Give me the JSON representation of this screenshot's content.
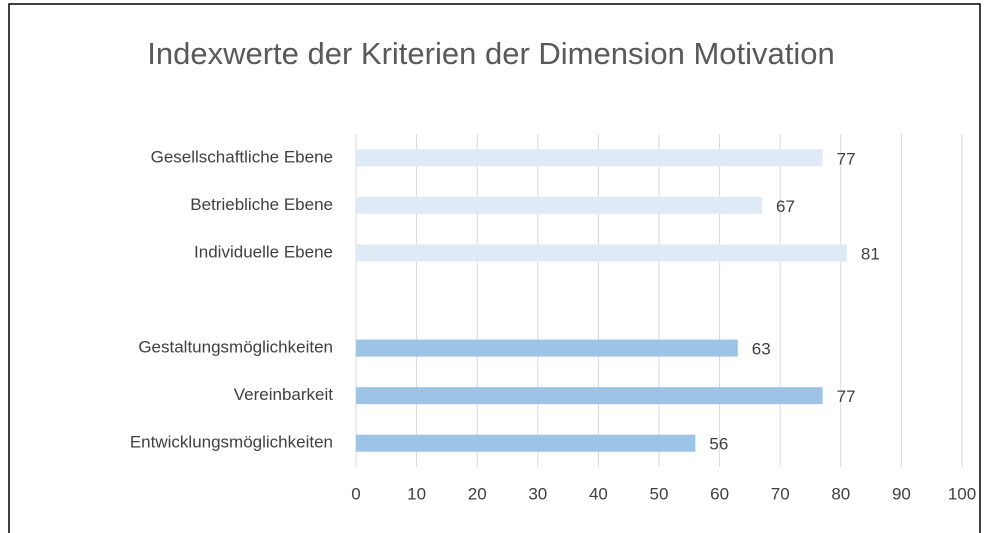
{
  "chart_data": {
    "type": "barh",
    "title": "Indexwerte der Kriterien der Dimension Motivation",
    "categories": [
      "Gesellschaftliche Ebene",
      "Betriebliche Ebene",
      "Individuelle Ebene",
      null,
      "Gestaltungsmöglichkeiten",
      "Vereinbarkeit",
      "Entwicklungsmöglichkeiten"
    ],
    "values": [
      77,
      67,
      81,
      null,
      63,
      77,
      56
    ],
    "colors": [
      "#deebf7",
      "#deebf7",
      "#deebf7",
      null,
      "#9dc3e6",
      "#9dc3e6",
      "#9dc3e6"
    ],
    "xlim": [
      0,
      100
    ],
    "xticks": [
      0,
      10,
      20,
      30,
      40,
      50,
      60,
      70,
      80,
      90,
      100
    ],
    "grid": true
  }
}
